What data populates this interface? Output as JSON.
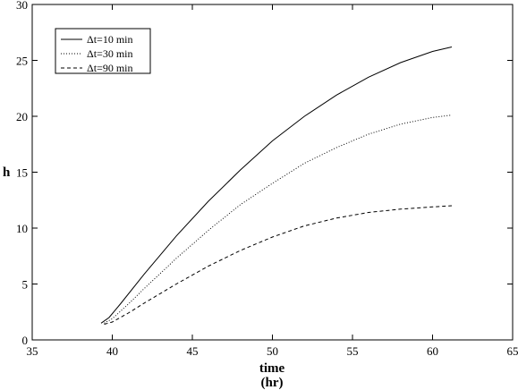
{
  "chart_data": {
    "type": "line",
    "title": "",
    "xlabel": "time",
    "xlabel_unit": "(hr)",
    "ylabel": "h",
    "xlim": [
      35,
      65
    ],
    "ylim": [
      0,
      30
    ],
    "xticks": [
      35,
      40,
      45,
      50,
      55,
      60,
      65
    ],
    "yticks": [
      0,
      5,
      10,
      15,
      20,
      25,
      30
    ],
    "grid": false,
    "legend_position": "top-left",
    "series": [
      {
        "name": "Δt=10 min",
        "line_style": "solid",
        "color": "#000000",
        "x": [
          39.3,
          39.8,
          40.5,
          42,
          44,
          46,
          48,
          50,
          52,
          54,
          56,
          58,
          60,
          61.2
        ],
        "y": [
          1.5,
          2.0,
          3.2,
          5.9,
          9.3,
          12.4,
          15.2,
          17.8,
          20.0,
          21.9,
          23.5,
          24.8,
          25.8,
          26.2
        ]
      },
      {
        "name": "Δt=30 min",
        "line_style": "dotted",
        "color": "#000000",
        "x": [
          39.5,
          40,
          41,
          42,
          44,
          46,
          48,
          50,
          52,
          54,
          56,
          58,
          60,
          61.2
        ],
        "y": [
          1.5,
          1.9,
          3.2,
          4.6,
          7.3,
          9.8,
          12.1,
          14.0,
          15.8,
          17.2,
          18.4,
          19.3,
          19.9,
          20.1
        ]
      },
      {
        "name": "Δt=90 min",
        "line_style": "dashed",
        "color": "#000000",
        "x": [
          39.5,
          40,
          41,
          42,
          44,
          46,
          48,
          50,
          52,
          54,
          56,
          58,
          60,
          61.2
        ],
        "y": [
          1.4,
          1.6,
          2.4,
          3.3,
          5.0,
          6.6,
          8.0,
          9.2,
          10.2,
          10.9,
          11.4,
          11.7,
          11.9,
          12.0
        ]
      }
    ]
  }
}
